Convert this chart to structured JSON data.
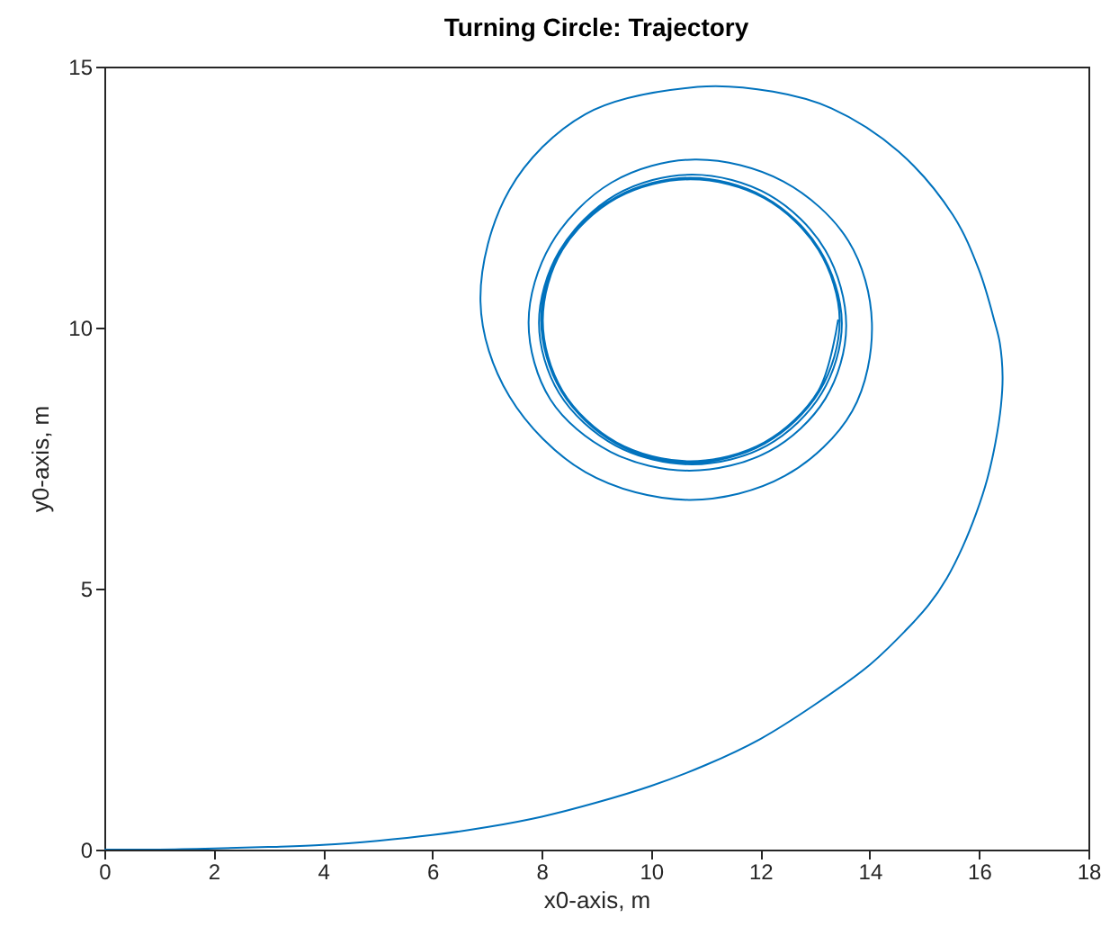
{
  "chart_data": {
    "type": "line",
    "title": "Turning Circle: Trajectory",
    "xlabel": "x0-axis, m",
    "ylabel": "y0-axis, m",
    "xlim": [
      0,
      18
    ],
    "xticks": [
      0,
      2,
      4,
      6,
      8,
      10,
      12,
      14,
      16,
      18
    ],
    "ylim": [
      0,
      15
    ],
    "yticks": [
      0,
      5,
      10,
      15
    ],
    "grid": false,
    "line_style": "solid",
    "series": [
      {
        "color": "#0072bd",
        "x": [
          0,
          1,
          2,
          3,
          4,
          5,
          6,
          7,
          8,
          9,
          10,
          11,
          12,
          13,
          14,
          14.64,
          15.08,
          15.41,
          15.7,
          15.95,
          16.15,
          16.3,
          16.4,
          16.43,
          16.38,
          16.29,
          16.0,
          15.52,
          14.53,
          13.3,
          12.23,
          10.85,
          8.8,
          7.41,
          6.88,
          7.41,
          8.8,
          10.69,
          12.45,
          13.68,
          14.04,
          13.61,
          12.42,
          10.8,
          9.28,
          8.17,
          7.76,
          8.16,
          9.26,
          10.7,
          12.16,
          13.19,
          13.57,
          13.19,
          12.16,
          10.75,
          9.35,
          8.32,
          7.95,
          8.32,
          9.35,
          10.75,
          12.12,
          13.12,
          13.49,
          13.08,
          12.08,
          10.72,
          9.36,
          8.36,
          7.99,
          8.36,
          9.36,
          10.72,
          12.08,
          13.08,
          13.45,
          13.06,
          12.07,
          10.72,
          9.37,
          8.38,
          8.02,
          8.38,
          9.37,
          10.72,
          12.07,
          13.06,
          13.42
        ],
        "values": [
          0,
          0,
          0.02,
          0.05,
          0.09,
          0.17,
          0.28,
          0.43,
          0.63,
          0.9,
          1.22,
          1.62,
          2.12,
          2.78,
          3.54,
          4.18,
          4.69,
          5.2,
          5.8,
          6.45,
          7.1,
          7.8,
          8.5,
          9.06,
          9.7,
          10.09,
          11.1,
          12.16,
          13.37,
          14.2,
          14.52,
          14.61,
          14.09,
          12.64,
          10.5,
          8.68,
          7.23,
          6.7,
          7.16,
          8.4,
          10.09,
          11.66,
          12.8,
          13.22,
          12.78,
          11.6,
          10.1,
          8.62,
          7.62,
          7.26,
          7.63,
          8.64,
          10.03,
          11.48,
          12.54,
          12.93,
          12.54,
          11.46,
          10.09,
          8.74,
          7.74,
          7.38,
          7.74,
          8.74,
          10.09,
          11.5,
          12.5,
          12.87,
          12.5,
          11.5,
          10.14,
          8.78,
          7.78,
          7.41,
          7.78,
          8.78,
          10.14,
          11.49,
          12.48,
          12.84,
          12.48,
          11.49,
          10.14,
          8.79,
          7.8,
          7.44,
          7.8,
          8.79,
          10.14
        ]
      }
    ]
  }
}
